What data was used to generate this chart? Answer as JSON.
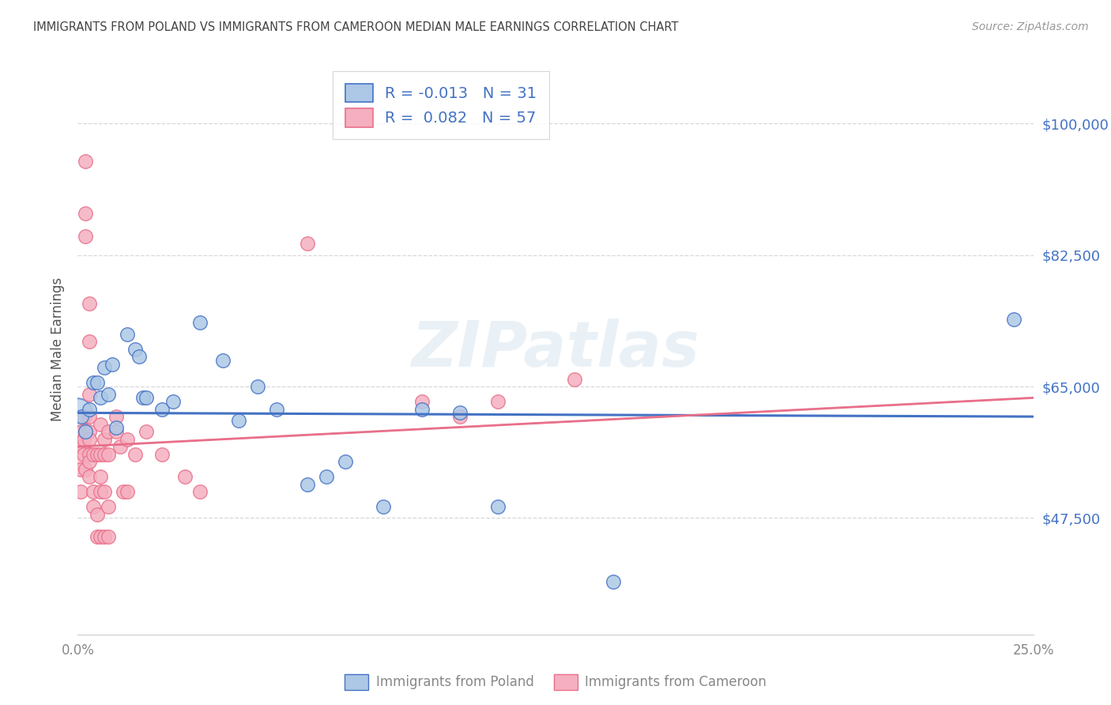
{
  "title": "IMMIGRANTS FROM POLAND VS IMMIGRANTS FROM CAMEROON MEDIAN MALE EARNINGS CORRELATION CHART",
  "source": "Source: ZipAtlas.com",
  "ylabel": "Median Male Earnings",
  "yticks": [
    47500,
    65000,
    82500,
    100000
  ],
  "ytick_labels": [
    "$47,500",
    "$65,000",
    "$82,500",
    "$100,000"
  ],
  "xticks": [
    0.0,
    0.05,
    0.1,
    0.15,
    0.2,
    0.25
  ],
  "xtick_labels": [
    "0.0%",
    "",
    "",
    "",
    "",
    "25.0%"
  ],
  "xmin": 0.0,
  "xmax": 0.25,
  "ymin": 32000,
  "ymax": 108000,
  "watermark": "ZIPatlas",
  "legend_poland_r": "-0.013",
  "legend_poland_n": "31",
  "legend_cameroon_r": "0.082",
  "legend_cameroon_n": "57",
  "poland_color": "#adc8e6",
  "cameroon_color": "#f5afc0",
  "poland_line_color": "#4472c4",
  "cameroon_line_color": "#e8708a",
  "poland_scatter": [
    [
      0.001,
      61000
    ],
    [
      0.002,
      59000
    ],
    [
      0.003,
      62000
    ],
    [
      0.004,
      65500
    ],
    [
      0.005,
      65500
    ],
    [
      0.006,
      63500
    ],
    [
      0.007,
      67500
    ],
    [
      0.008,
      64000
    ],
    [
      0.009,
      68000
    ],
    [
      0.01,
      59500
    ],
    [
      0.013,
      72000
    ],
    [
      0.015,
      70000
    ],
    [
      0.016,
      69000
    ],
    [
      0.017,
      63500
    ],
    [
      0.018,
      63500
    ],
    [
      0.022,
      62000
    ],
    [
      0.025,
      63000
    ],
    [
      0.032,
      73500
    ],
    [
      0.038,
      68500
    ],
    [
      0.042,
      60500
    ],
    [
      0.047,
      65000
    ],
    [
      0.052,
      62000
    ],
    [
      0.06,
      52000
    ],
    [
      0.065,
      53000
    ],
    [
      0.07,
      55000
    ],
    [
      0.08,
      49000
    ],
    [
      0.09,
      62000
    ],
    [
      0.1,
      61500
    ],
    [
      0.11,
      49000
    ],
    [
      0.14,
      39000
    ],
    [
      0.245,
      74000
    ]
  ],
  "cameroon_scatter": [
    [
      0.0005,
      57000
    ],
    [
      0.0007,
      54000
    ],
    [
      0.0007,
      51000
    ],
    [
      0.001,
      57000
    ],
    [
      0.001,
      59000
    ],
    [
      0.0015,
      61000
    ],
    [
      0.0015,
      58000
    ],
    [
      0.0015,
      56000
    ],
    [
      0.002,
      54000
    ],
    [
      0.002,
      59000
    ],
    [
      0.002,
      95000
    ],
    [
      0.002,
      88000
    ],
    [
      0.002,
      85000
    ],
    [
      0.003,
      76000
    ],
    [
      0.003,
      71000
    ],
    [
      0.003,
      64000
    ],
    [
      0.003,
      61000
    ],
    [
      0.003,
      59000
    ],
    [
      0.003,
      58000
    ],
    [
      0.003,
      56000
    ],
    [
      0.003,
      55000
    ],
    [
      0.003,
      53000
    ],
    [
      0.004,
      49000
    ],
    [
      0.004,
      51000
    ],
    [
      0.004,
      56000
    ],
    [
      0.005,
      45000
    ],
    [
      0.005,
      48000
    ],
    [
      0.005,
      56000
    ],
    [
      0.006,
      60000
    ],
    [
      0.006,
      56000
    ],
    [
      0.006,
      53000
    ],
    [
      0.006,
      51000
    ],
    [
      0.006,
      45000
    ],
    [
      0.007,
      58000
    ],
    [
      0.007,
      56000
    ],
    [
      0.007,
      51000
    ],
    [
      0.007,
      45000
    ],
    [
      0.008,
      59000
    ],
    [
      0.008,
      56000
    ],
    [
      0.008,
      49000
    ],
    [
      0.008,
      45000
    ],
    [
      0.01,
      61000
    ],
    [
      0.01,
      59000
    ],
    [
      0.011,
      57000
    ],
    [
      0.012,
      51000
    ],
    [
      0.013,
      51000
    ],
    [
      0.013,
      58000
    ],
    [
      0.015,
      56000
    ],
    [
      0.018,
      59000
    ],
    [
      0.022,
      56000
    ],
    [
      0.028,
      53000
    ],
    [
      0.032,
      51000
    ],
    [
      0.06,
      84000
    ],
    [
      0.09,
      63000
    ],
    [
      0.1,
      61000
    ],
    [
      0.11,
      63000
    ],
    [
      0.13,
      66000
    ]
  ],
  "poland_large_point": [
    0.0,
    61500
  ],
  "cameroon_large_point": [
    0.0,
    56000
  ],
  "background_color": "#ffffff",
  "grid_color": "#d8d8d8"
}
